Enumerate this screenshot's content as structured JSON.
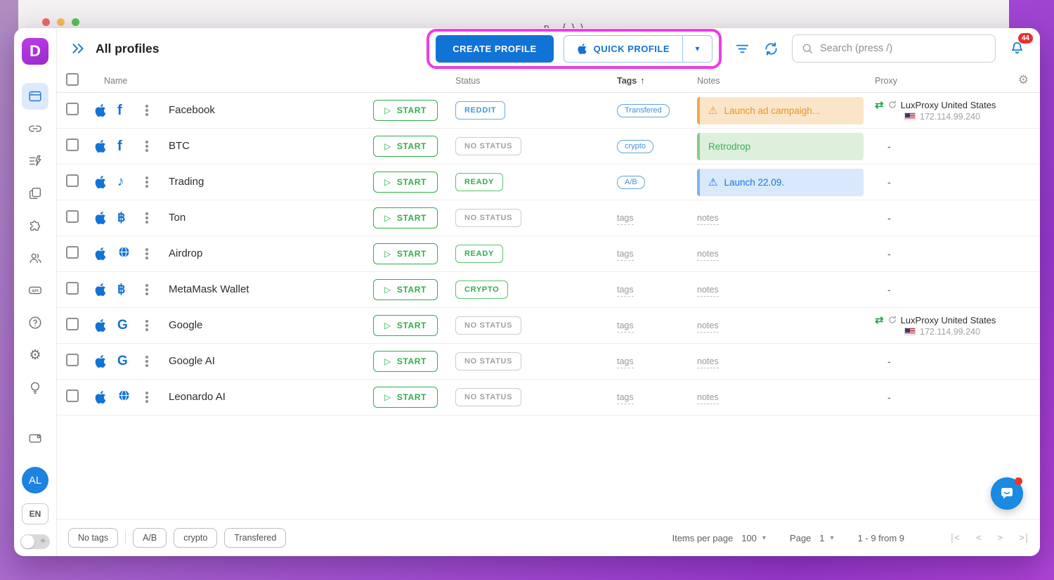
{
  "window": {
    "title_fragment": "p {})"
  },
  "sidebar": {
    "logo_letter": "D",
    "avatar_initials": "AL",
    "language": "EN"
  },
  "header": {
    "title": "All profiles",
    "create_button": "CREATE PROFILE",
    "quick_button": "QUICK PROFILE",
    "search_placeholder": "Search (press /)",
    "notifications_count": "44"
  },
  "table": {
    "columns": {
      "name": "Name",
      "status": "Status",
      "tags": "Tags",
      "notes": "Notes",
      "proxy": "Proxy"
    },
    "start_label": "START",
    "placeholders": {
      "tags": "tags",
      "notes": "notes",
      "dash": "-"
    }
  },
  "rows": [
    {
      "name": "Facebook",
      "platform": "facebook",
      "status": {
        "label": "REDDIT",
        "variant": "blue"
      },
      "tag": {
        "label": "Transfered"
      },
      "note": {
        "text": "Launch ad campaigh...",
        "variant": "orange",
        "warning": true
      },
      "proxy": {
        "name": "LuxProxy United States",
        "ip": "172.114.99.240"
      }
    },
    {
      "name": "BTC",
      "platform": "facebook",
      "status": {
        "label": "NO STATUS",
        "variant": "gray"
      },
      "tag": {
        "label": "crypto"
      },
      "note": {
        "text": "Retrodrop",
        "variant": "green",
        "warning": false
      }
    },
    {
      "name": "Trading",
      "platform": "tiktok",
      "status": {
        "label": "READY",
        "variant": "green"
      },
      "tag": {
        "label": "A/B"
      },
      "note": {
        "text": "Launch 22.09.",
        "variant": "blue",
        "warning": true
      }
    },
    {
      "name": "Ton",
      "platform": "bitcoin",
      "status": {
        "label": "NO STATUS",
        "variant": "gray"
      }
    },
    {
      "name": "Airdrop",
      "platform": "globe",
      "status": {
        "label": "READY",
        "variant": "green"
      }
    },
    {
      "name": "MetaMask Wallet",
      "platform": "bitcoin",
      "status": {
        "label": "CRYPTO",
        "variant": "green"
      }
    },
    {
      "name": "Google",
      "platform": "google",
      "status": {
        "label": "NO STATUS",
        "variant": "gray"
      },
      "proxy": {
        "name": "LuxProxy United States",
        "ip": "172.114.99.240"
      }
    },
    {
      "name": "Google AI",
      "platform": "google",
      "status": {
        "label": "NO STATUS",
        "variant": "gray"
      }
    },
    {
      "name": "Leonardo AI",
      "platform": "globe",
      "status": {
        "label": "NO STATUS",
        "variant": "gray"
      }
    }
  ],
  "icon_glyphs": {
    "facebook": "f",
    "google": "G",
    "tiktok": "♪",
    "bitcoin": "฿",
    "play": "▷",
    "sort_up": "↑",
    "warning": "⚠",
    "swap": "⇄",
    "caret": "▾",
    "gear": "⚙",
    "sun": "☀",
    "pager_first": "|<",
    "pager_prev": "<",
    "pager_next": ">",
    "pager_last": ">|"
  },
  "footer": {
    "filters": [
      "No tags",
      "A/B",
      "crypto",
      "Transfered"
    ],
    "items_per_page_label": "Items per page",
    "items_per_page_value": "100",
    "page_label": "Page",
    "page_value": "1",
    "range_text": "1 - 9 from 9"
  },
  "colors": {
    "accent": "#1273d6",
    "green": "#2fae49",
    "pink_ring": "#f23ae6",
    "logo_purple": "#a631d6",
    "notification_red": "#e6332f"
  }
}
